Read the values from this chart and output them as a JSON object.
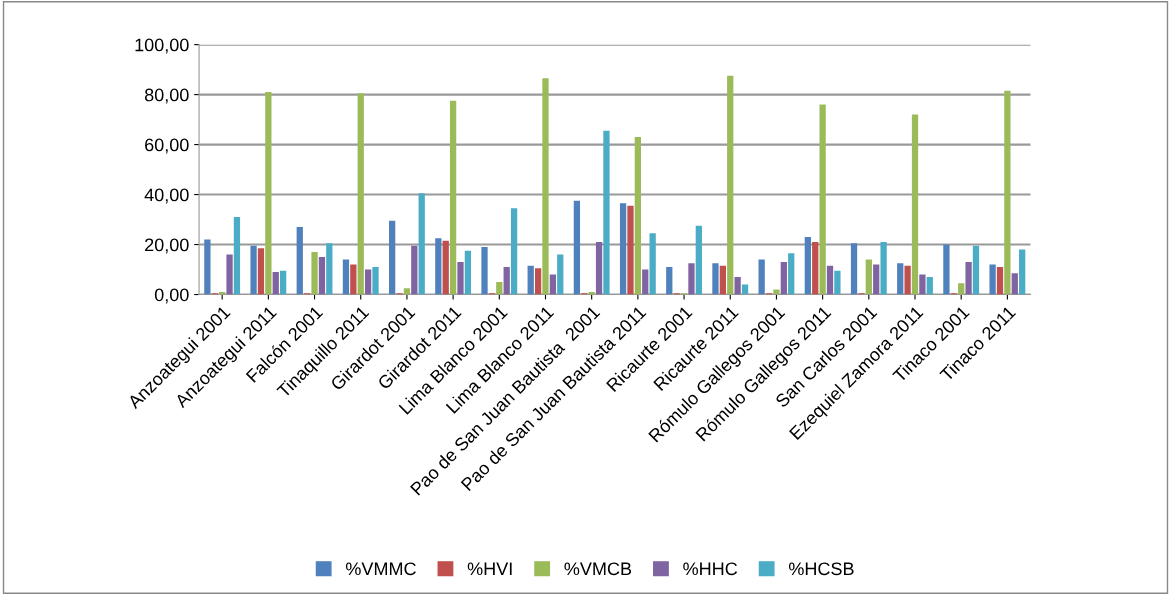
{
  "chart_data": {
    "type": "bar",
    "categories": [
      "Anzoategui 2001",
      "Anzoategui 2011",
      "Falcón 2001",
      "Tinaquillo 2011",
      "Girardot 2001",
      "Girardot 2011",
      "Lima Blanco 2001",
      "Lima Blanco 2011",
      "Pao de San Juan Bautista  2001",
      "Pao de San Juan Bautista 2011",
      "Ricaurte 2001",
      "Ricaurte 2011",
      "Rómulo Gallegos 2001",
      "Rómulo Gallegos 2011",
      "San Carlos 2001",
      "Ezequiel Zamora 2011",
      "Tinaco 2001",
      "Tinaco 2011"
    ],
    "series": [
      {
        "name": "%VMMC",
        "color": "#4f81bd",
        "values": [
          22,
          19.5,
          27,
          14,
          29.5,
          22.5,
          19,
          11.5,
          37.5,
          36.5,
          11,
          12.5,
          14,
          23,
          20.5,
          12.5,
          20,
          12
        ]
      },
      {
        "name": "%HVI",
        "color": "#c0504d",
        "values": [
          0.5,
          18.5,
          0.5,
          12,
          0.5,
          21.5,
          0.5,
          10.5,
          0.5,
          35.5,
          0.5,
          11.5,
          0.5,
          21,
          0.5,
          11.5,
          0.5,
          11
        ]
      },
      {
        "name": "%VMCB",
        "color": "#9bbb59",
        "values": [
          1,
          81,
          17,
          80.5,
          2.5,
          77.5,
          5,
          86.5,
          1,
          63,
          0.5,
          87.5,
          2,
          76,
          14,
          72,
          4.5,
          81.5
        ]
      },
      {
        "name": "%HHC",
        "color": "#8064a2",
        "values": [
          16,
          9,
          15,
          10,
          19.5,
          13,
          11,
          8,
          21,
          10,
          12.5,
          7,
          13,
          11.5,
          12,
          8,
          13,
          8.5
        ]
      },
      {
        "name": "%HCSB",
        "color": "#4bacc6",
        "values": [
          31,
          9.5,
          20.5,
          11,
          40.5,
          17.5,
          34.5,
          16,
          65.5,
          24.5,
          27.5,
          4,
          16.5,
          9.5,
          21,
          7,
          19.5,
          18
        ]
      }
    ],
    "ylim": [
      0,
      100
    ],
    "yticks": [
      {
        "value": 0,
        "label": "0,00"
      },
      {
        "value": 20,
        "label": "20,00"
      },
      {
        "value": 40,
        "label": "40,00"
      },
      {
        "value": 60,
        "label": "60,00"
      },
      {
        "value": 80,
        "label": "80,00"
      },
      {
        "value": 100,
        "label": "100,00"
      }
    ],
    "grid": "y",
    "legend": "bottom"
  }
}
